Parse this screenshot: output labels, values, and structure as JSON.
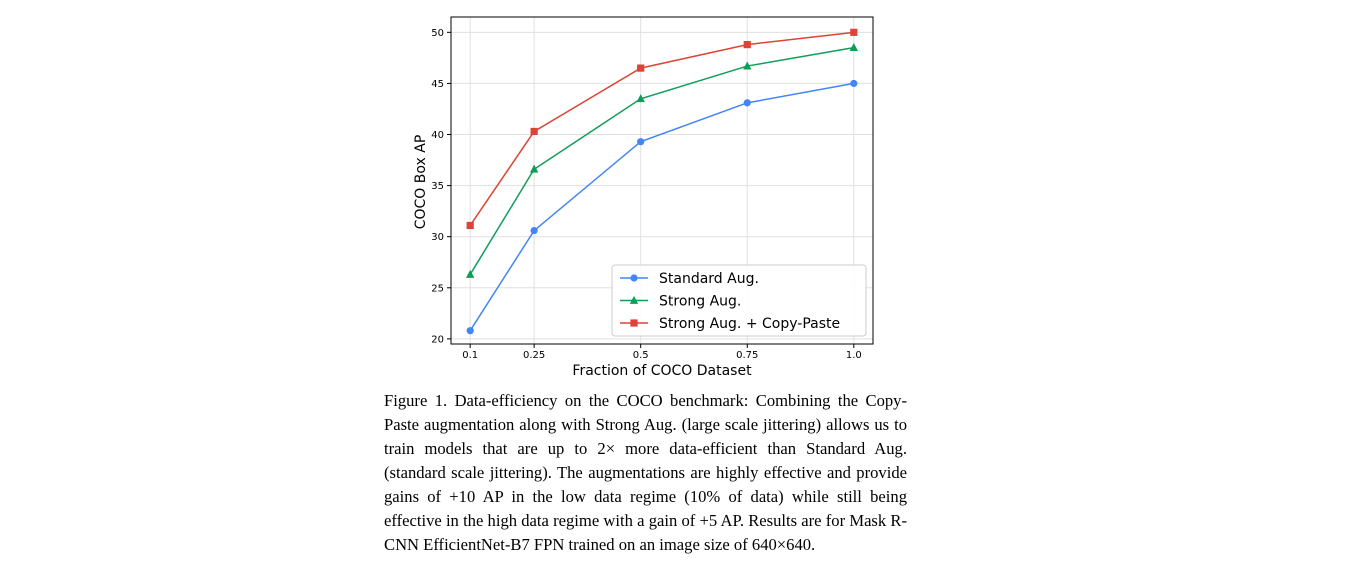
{
  "chart_data": {
    "type": "line",
    "xlabel": "Fraction of COCO Dataset",
    "ylabel": "COCO Box AP",
    "x": [
      0.1,
      0.25,
      0.5,
      0.75,
      1.0
    ],
    "x_tick_labels": [
      "0.1",
      "0.25",
      "0.5",
      "0.75",
      "1.0"
    ],
    "y_ticks": [
      20,
      25,
      30,
      35,
      40,
      45,
      50
    ],
    "xlim": [
      0.055,
      1.045
    ],
    "ylim": [
      19.5,
      51.5
    ],
    "grid": true,
    "legend_position": "lower-right",
    "series": [
      {
        "name": "Standard Aug.",
        "color": "#4285f4",
        "marker": "circle",
        "values": [
          20.8,
          30.6,
          39.3,
          43.1,
          45.0
        ]
      },
      {
        "name": "Strong Aug.",
        "color": "#0f9d58",
        "marker": "triangle",
        "values": [
          26.3,
          36.6,
          43.5,
          46.7,
          48.5
        ]
      },
      {
        "name": "Strong Aug. + Copy-Paste",
        "color": "#db4437",
        "marker": "square",
        "values": [
          31.1,
          40.3,
          46.5,
          48.8,
          50.0
        ]
      }
    ]
  },
  "caption": "Figure 1. Data-efficiency on the COCO benchmark: Combining the Copy-Paste augmentation along with Strong Aug. (large scale jittering) allows us to train models that are up to 2× more data-efficient than Standard Aug. (standard scale jittering). The augmentations are highly effective and provide gains of +10 AP in the low data regime (10% of data) while still being effective in the high data regime with a gain of +5 AP. Results are for Mask R-CNN EfficientNet-B7 FPN trained on an image size of 640×640."
}
